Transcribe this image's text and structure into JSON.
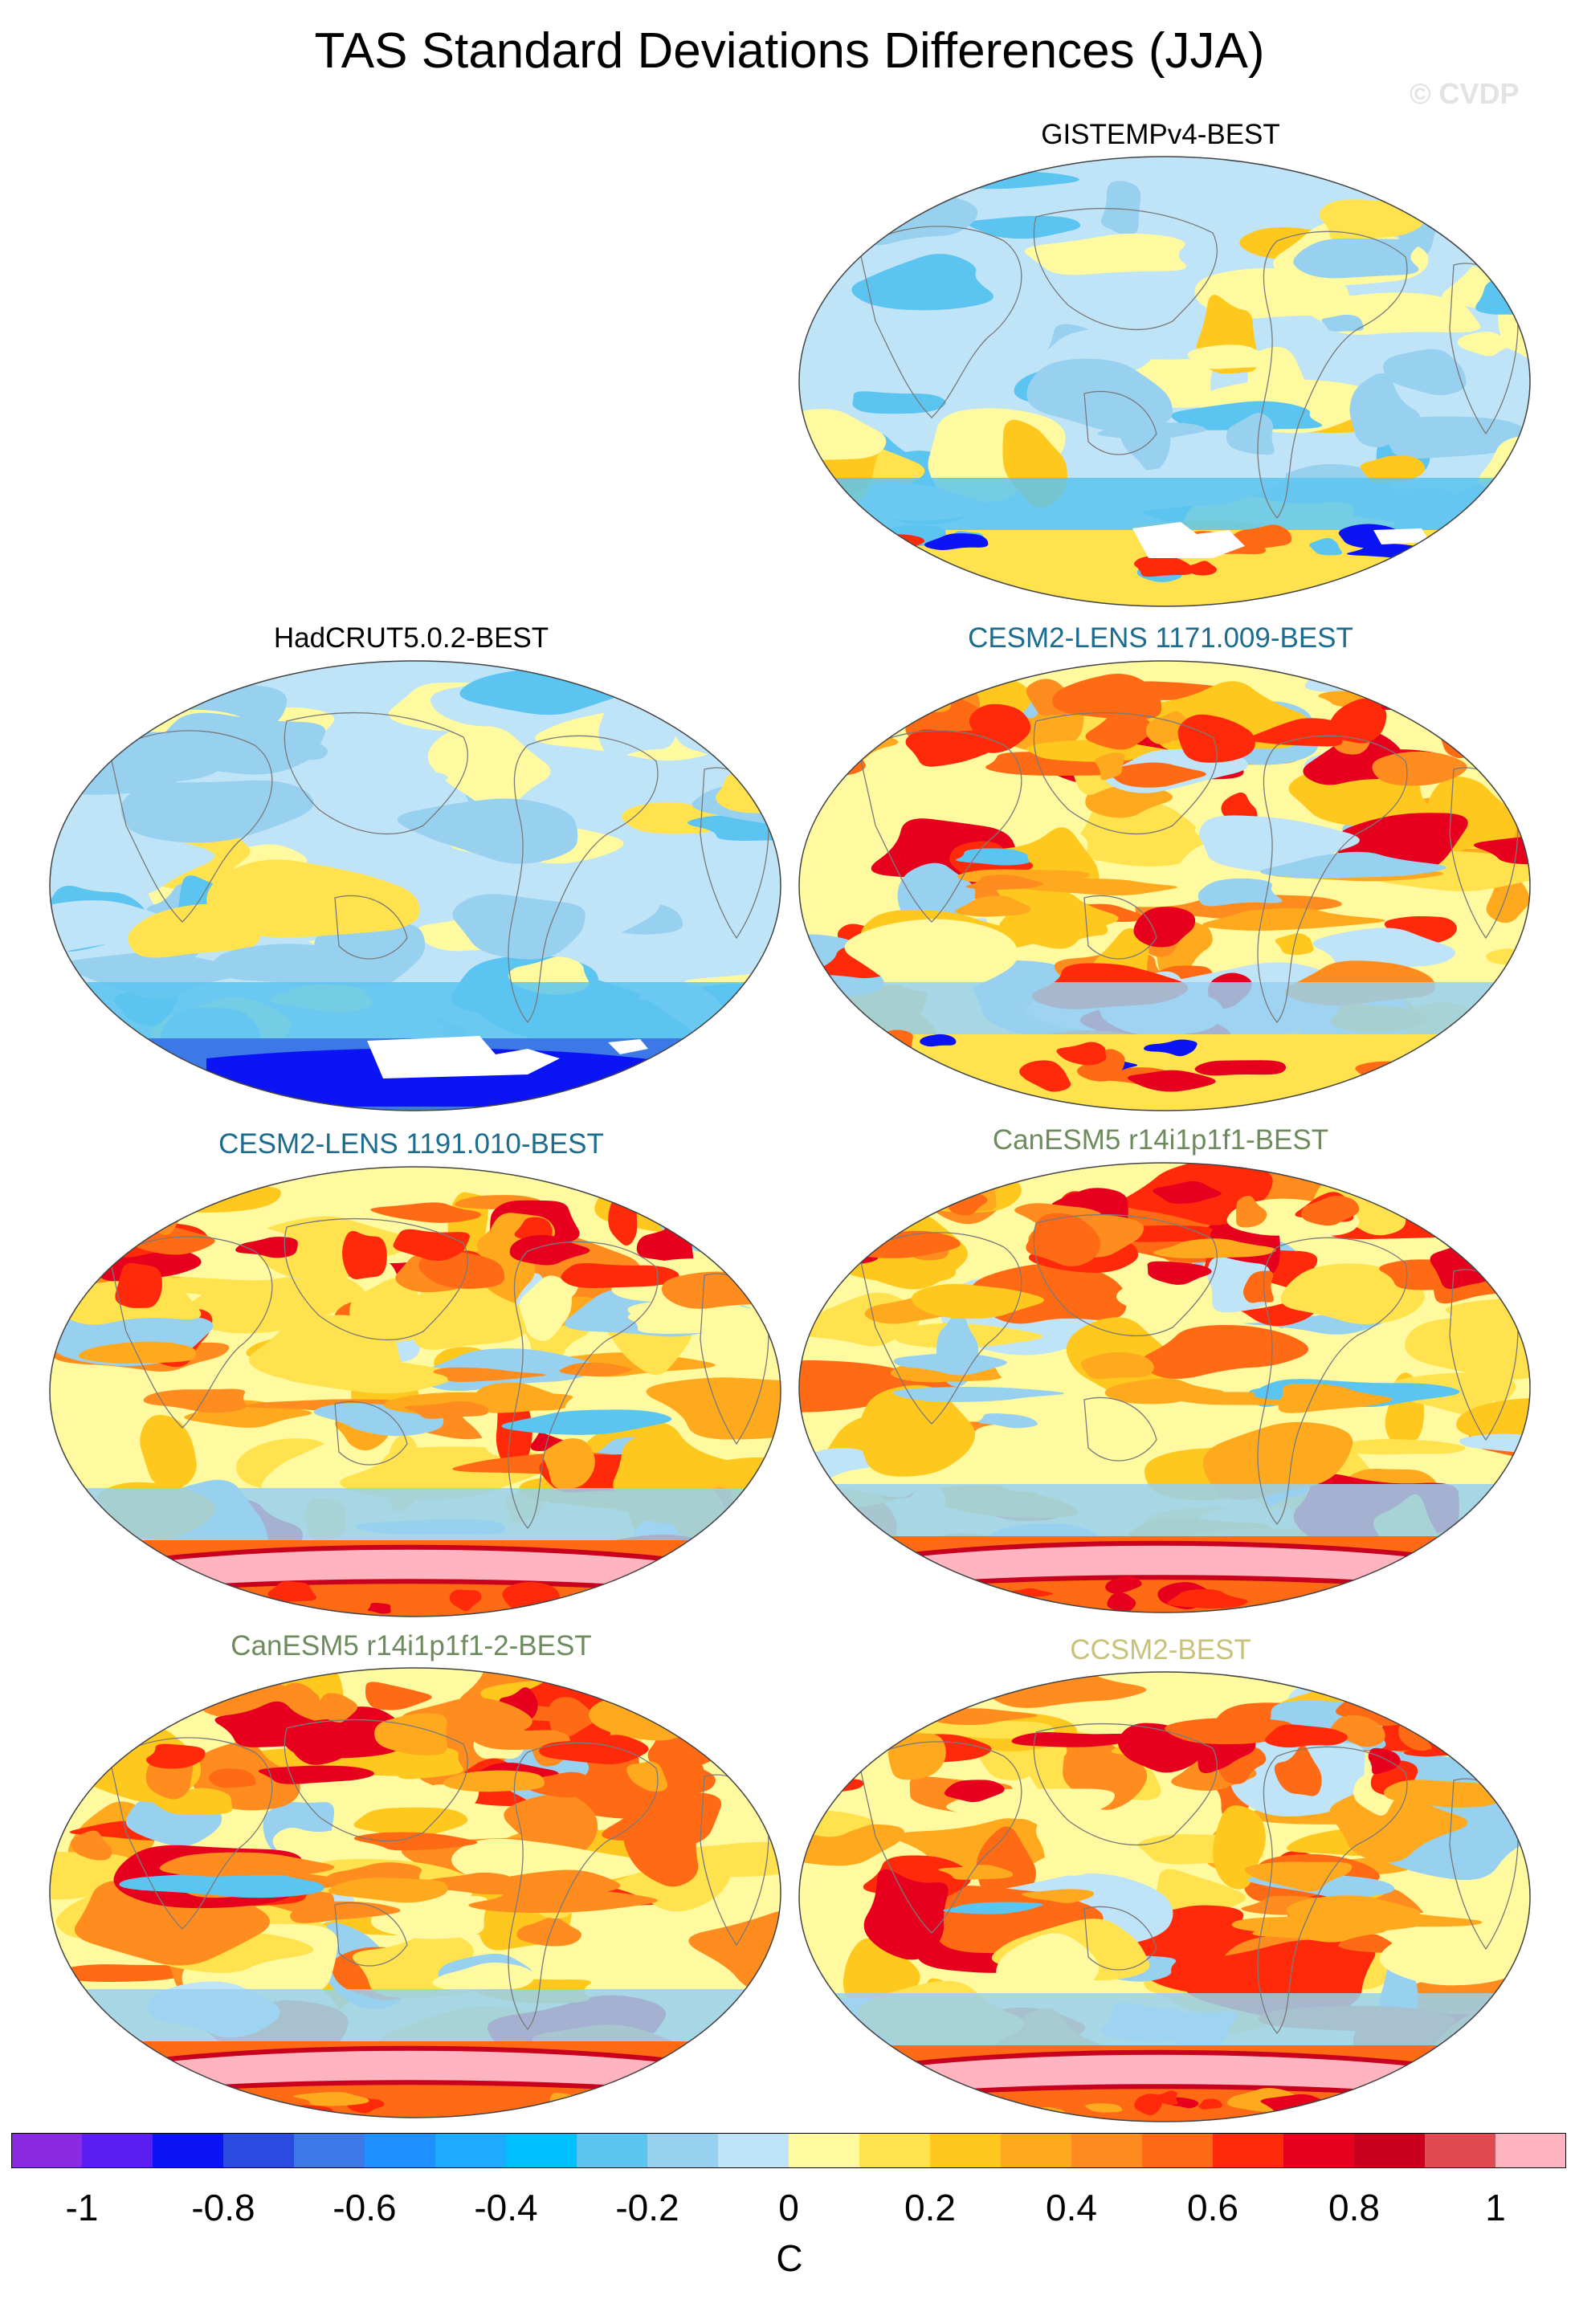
{
  "title": "TAS Standard Deviations Differences (JJA)",
  "watermark": "© CVDP",
  "panels": [
    {
      "id": "gistemp",
      "label": "GISTEMPv4-BEST",
      "color": "#000000",
      "tone": "mixed",
      "antarctic": "mixed"
    },
    {
      "id": "hadcrut",
      "label": "HadCRUT5.0.2-BEST",
      "color": "#000000",
      "tone": "cool",
      "antarctic": "strong-neg"
    },
    {
      "id": "cesm2-1171",
      "label": "CESM2-LENS 1171.009-BEST",
      "color": "#1c6c8f",
      "tone": "warm",
      "antarctic": "mixed"
    },
    {
      "id": "cesm2-1191",
      "label": "CESM2-LENS 1191.010-BEST",
      "color": "#1c6c8f",
      "tone": "warm",
      "antarctic": "strong-pos"
    },
    {
      "id": "canesm5-1",
      "label": "CanESM5 r14i1p1f1-BEST",
      "color": "#6d8b5e",
      "tone": "warm",
      "antarctic": "strong-pos"
    },
    {
      "id": "canesm5-2",
      "label": "CanESM5 r14i1p1f1-2-BEST",
      "color": "#6d8b5e",
      "tone": "warm",
      "antarctic": "strong-pos"
    },
    {
      "id": "ccsm2",
      "label": "CCSM2-BEST",
      "color": "#c9c27a",
      "tone": "warm",
      "antarctic": "strong-pos"
    }
  ],
  "colorbar": {
    "colors": [
      "#8a2be2",
      "#5a1ef0",
      "#0a14f5",
      "#2a4be0",
      "#3c78e6",
      "#1e90ff",
      "#1eaaff",
      "#00c0ff",
      "#5cc4f0",
      "#98d0f0",
      "#bfe3f7",
      "#fffaa0",
      "#ffe24d",
      "#ffc81e",
      "#ffaa1e",
      "#ff8c1e",
      "#ff6a14",
      "#ff2a0a",
      "#e6001e",
      "#c8001e",
      "#e04a50",
      "#ffb4c0"
    ],
    "ticks": [
      "-1",
      "-0.8",
      "-0.6",
      "-0.4",
      "-0.2",
      "0",
      "0.2",
      "0.4",
      "0.6",
      "0.8",
      "1"
    ],
    "units": "C"
  }
}
